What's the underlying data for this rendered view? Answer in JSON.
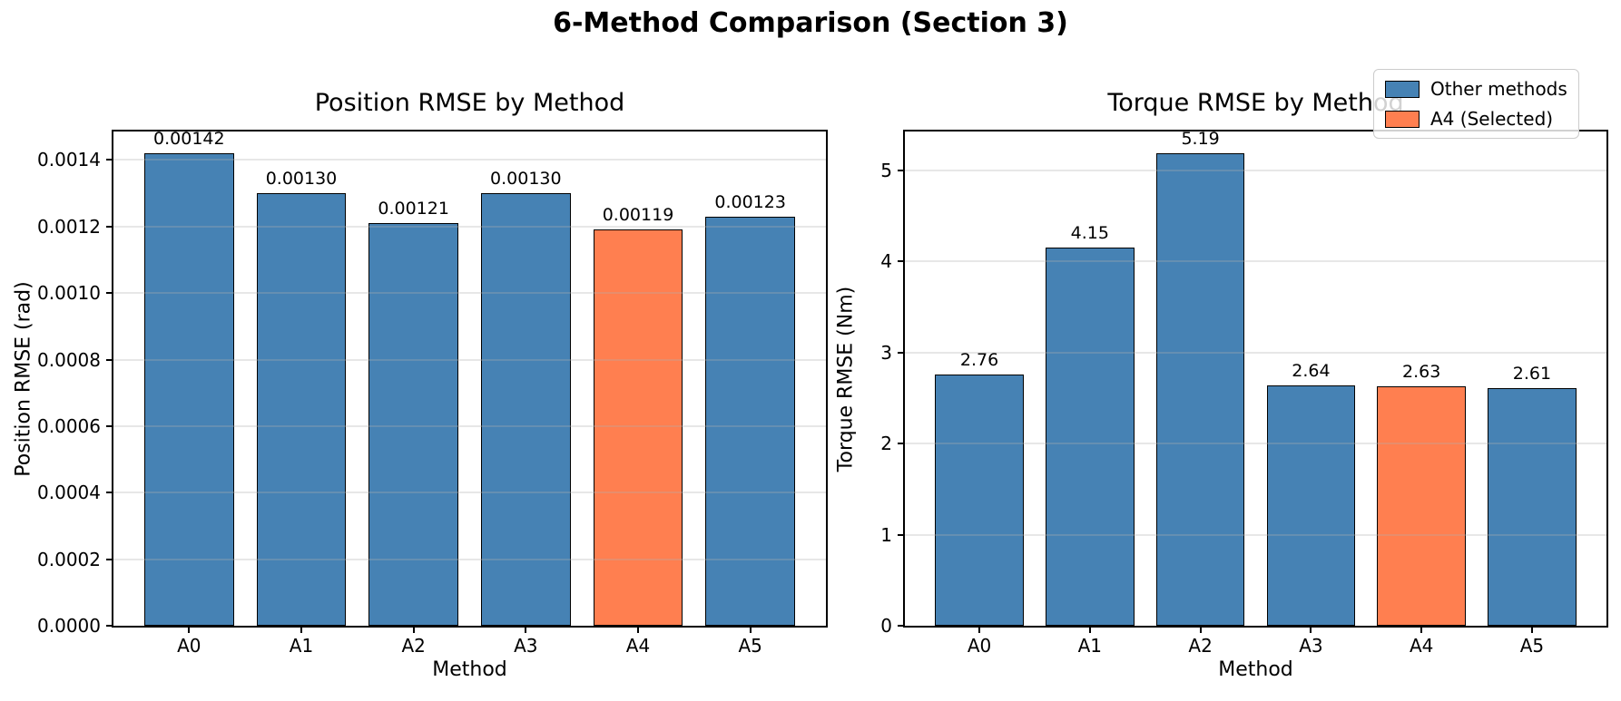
{
  "suptitle": "6-Method Comparison (Section 3)",
  "legend": {
    "position": "upper right",
    "items": [
      {
        "label": "Other methods",
        "color": "#4682B4"
      },
      {
        "label": "A4 (Selected)",
        "color": "#FF7F50"
      }
    ]
  },
  "colors": {
    "bar_default": "#4682B4",
    "bar_selected": "#FF7F50",
    "bar_edge": "#000000",
    "grid": "#b0b0b0",
    "legend_border": "#cccccc"
  },
  "chart_data": [
    {
      "type": "bar",
      "title": "Position RMSE by Method",
      "xlabel": "Method",
      "ylabel": "Position RMSE (rad)",
      "categories": [
        "A0",
        "A1",
        "A2",
        "A3",
        "A4",
        "A5"
      ],
      "values": [
        0.00142,
        0.0013,
        0.00121,
        0.0013,
        0.00119,
        0.00123
      ],
      "bar_labels": [
        "0.00142",
        "0.00130",
        "0.00121",
        "0.00130",
        "0.00119",
        "0.00123"
      ],
      "highlight_index": 4,
      "highlight_label": "A4 (Selected)",
      "ylim": [
        0,
        0.001491
      ],
      "yticks": [
        0,
        0.0002,
        0.0004,
        0.0006,
        0.0008,
        0.001,
        0.0012,
        0.0014
      ],
      "ytick_labels": [
        "0.0000",
        "0.0002",
        "0.0004",
        "0.0006",
        "0.0008",
        "0.0010",
        "0.0012",
        "0.0014"
      ],
      "grid": true,
      "legend_entries": [
        "Other methods",
        "A4 (Selected)"
      ]
    },
    {
      "type": "bar",
      "title": "Torque RMSE by Method",
      "xlabel": "Method",
      "ylabel": "Torque RMSE (Nm)",
      "categories": [
        "A0",
        "A1",
        "A2",
        "A3",
        "A4",
        "A5"
      ],
      "values": [
        2.76,
        4.15,
        5.19,
        2.64,
        2.63,
        2.61
      ],
      "bar_labels": [
        "2.76",
        "4.15",
        "5.19",
        "2.64",
        "2.63",
        "2.61"
      ],
      "highlight_index": 4,
      "highlight_label": "A4 (Selected)",
      "ylim": [
        0,
        5.4495
      ],
      "yticks": [
        0,
        1,
        2,
        3,
        4,
        5
      ],
      "ytick_labels": [
        "0",
        "1",
        "2",
        "3",
        "4",
        "5"
      ],
      "grid": true,
      "legend_entries": [
        "Other methods",
        "A4 (Selected)"
      ]
    }
  ]
}
